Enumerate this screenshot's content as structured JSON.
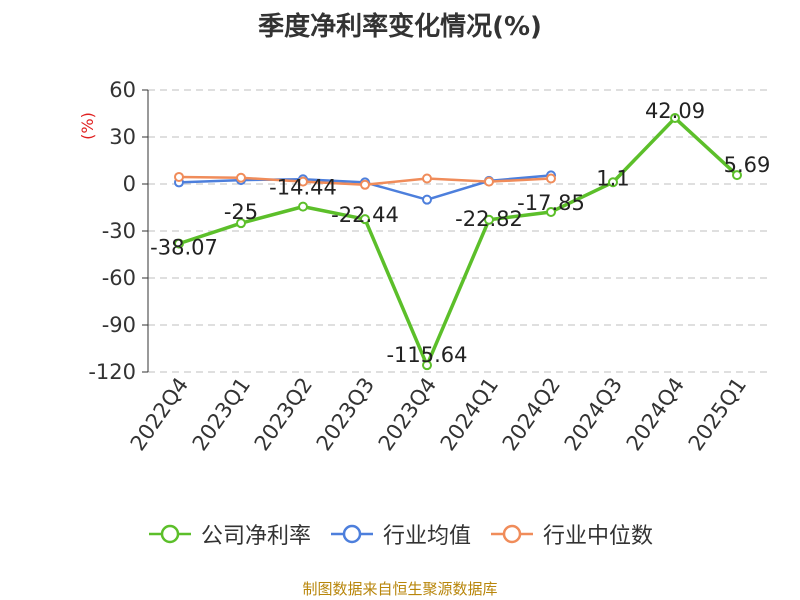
{
  "title": "季度净利率变化情况(%)",
  "source": "制图数据来自恒生聚源数据库",
  "chart_data": {
    "type": "line",
    "title": "季度净利率变化情况(%)",
    "ylabel": "(%)",
    "ylim": [
      -120,
      60
    ],
    "yticks": [
      60,
      30,
      0,
      -30,
      -60,
      -90,
      -120
    ],
    "categories": [
      "2022Q4",
      "2023Q1",
      "2023Q2",
      "2023Q3",
      "2023Q4",
      "2024Q1",
      "2024Q2",
      "2024Q3",
      "2024Q4",
      "2025Q1"
    ],
    "grid": true,
    "legend_position": "bottom",
    "series": [
      {
        "name": "公司净利率",
        "color": "#5cbf2a",
        "values": [
          -38.07,
          -25,
          -14.44,
          -22.44,
          -115.64,
          -22.82,
          -17.85,
          1.1,
          42.09,
          5.69
        ],
        "labels": [
          "-38.07",
          "-25",
          "-14.44",
          "-22.44",
          "-115.64",
          "-22.82",
          "-17.85",
          "1.1",
          "42.09",
          "5.69"
        ]
      },
      {
        "name": "行业均值",
        "color": "#4d7fdc",
        "values": [
          1.0,
          2.5,
          3.0,
          1.0,
          -10.0,
          2.0,
          5.5,
          null,
          null,
          null
        ]
      },
      {
        "name": "行业中位数",
        "color": "#f08c5a",
        "values": [
          4.5,
          4.0,
          1.5,
          -0.5,
          3.5,
          1.5,
          3.5,
          null,
          null,
          null
        ]
      }
    ]
  }
}
